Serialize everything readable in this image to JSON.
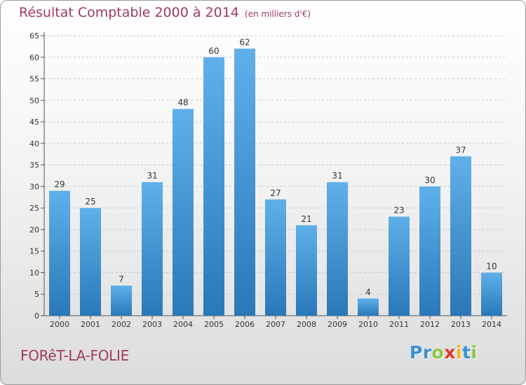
{
  "chart_data": {
    "type": "bar",
    "title": "Résultat Comptable 2000 à 2014",
    "subtitle": "(en milliers d'€)",
    "xlabel": "",
    "ylabel": "",
    "categories": [
      "2000",
      "2001",
      "2002",
      "2003",
      "2004",
      "2005",
      "2006",
      "2007",
      "2008",
      "2009",
      "2010",
      "2011",
      "2012",
      "2013",
      "2014"
    ],
    "values": [
      29,
      25,
      7,
      31,
      48,
      60,
      62,
      27,
      21,
      31,
      4,
      23,
      30,
      37,
      10
    ],
    "ylim": [
      0,
      65
    ],
    "yticks": [
      0,
      5,
      10,
      15,
      20,
      25,
      30,
      35,
      40,
      45,
      50,
      55,
      60,
      65
    ],
    "grid": true,
    "bar_color": "#3d8fd0"
  },
  "town": "FORêT-LA-FOLIE",
  "brand": {
    "letters": [
      {
        "ch": "P",
        "color": "#3a8fd3"
      },
      {
        "ch": "r",
        "color": "#3a8fd3"
      },
      {
        "ch": "o",
        "color": "#8cc63e"
      },
      {
        "ch": "x",
        "color": "#e5332a"
      },
      {
        "ch": "i",
        "color": "#f7b418"
      },
      {
        "ch": "t",
        "color": "#3a8fd3"
      },
      {
        "ch": "i",
        "color": "#8cc63e"
      }
    ]
  }
}
